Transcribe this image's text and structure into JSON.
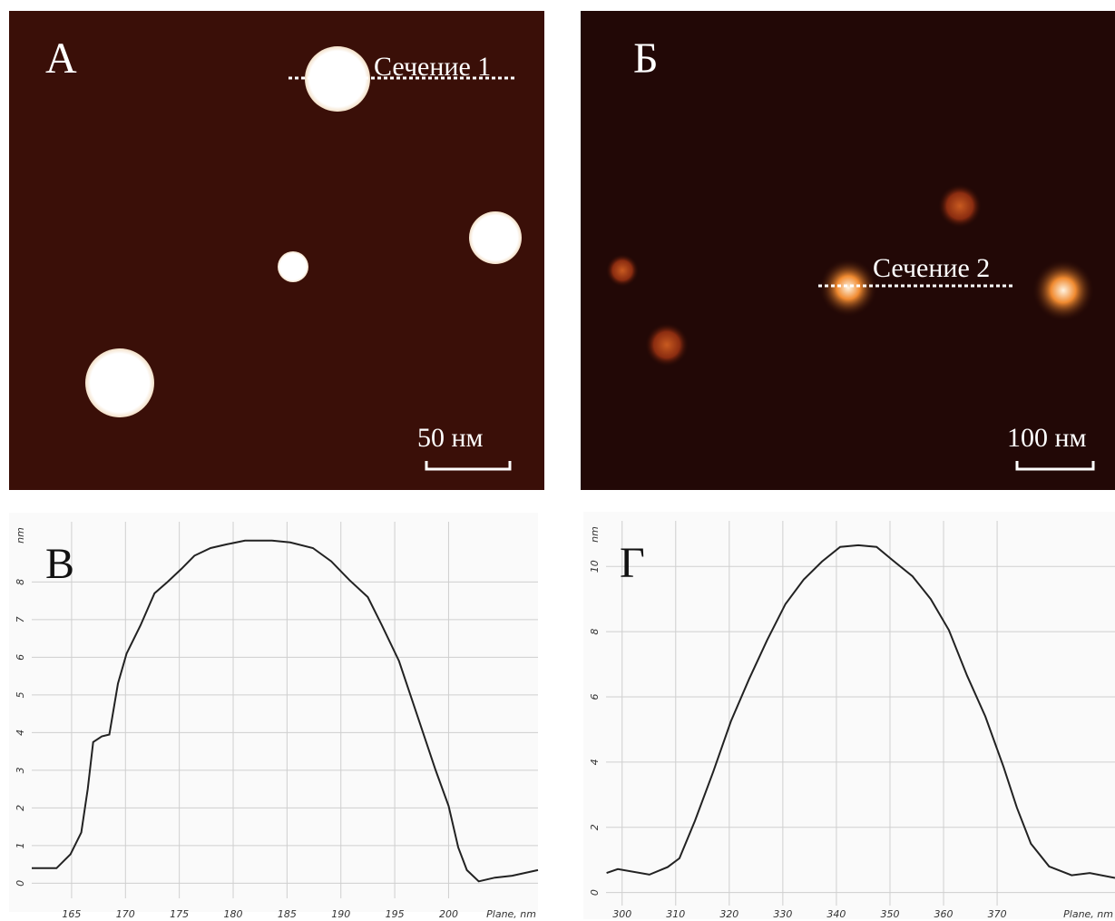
{
  "images": [
    {
      "panel_label": "А",
      "section_label": "Сечение 1",
      "scale_label": "50 нм"
    },
    {
      "panel_label": "Б",
      "section_label": "Сечение 2",
      "scale_label": "100 нм"
    }
  ],
  "chart_data": [
    {
      "type": "line",
      "panel_label": "В",
      "ylabel": "nm",
      "xlabel": "Plane, nm",
      "color": "#222222",
      "grid": true,
      "x": [
        161.3,
        163.6,
        164.9,
        165.9,
        166.5,
        167.0,
        167.8,
        168.5,
        169.3,
        170.1,
        171.4,
        172.7,
        173.9,
        175.2,
        176.4,
        177.9,
        179.4,
        181.1,
        183.6,
        185.3,
        187.4,
        189.1,
        190.8,
        192.5,
        193.8,
        195.4,
        197.1,
        198.8,
        200.0,
        200.9,
        201.7,
        202.8,
        204.3,
        205.9,
        208.3
      ],
      "values": [
        0.4,
        0.4,
        0.77,
        1.35,
        2.5,
        3.75,
        3.9,
        3.95,
        5.3,
        6.1,
        6.85,
        7.7,
        8.0,
        8.35,
        8.7,
        8.9,
        9.0,
        9.1,
        9.1,
        9.05,
        8.9,
        8.55,
        8.05,
        7.6,
        6.85,
        5.9,
        4.45,
        3.0,
        2.05,
        0.95,
        0.35,
        0.05,
        0.15,
        0.2,
        0.35
      ],
      "xlim": [
        161.3,
        208.3
      ],
      "xticks": [
        165,
        170,
        175,
        180,
        185,
        190,
        195,
        200
      ],
      "ylim": [
        -0.4,
        9.6
      ],
      "yticks": [
        0,
        1,
        2,
        3,
        4,
        5,
        6,
        7,
        8
      ]
    },
    {
      "type": "line",
      "panel_label": "Г",
      "ylabel": "nm",
      "xlabel": "Plane, nm",
      "color": "#222222",
      "grid": true,
      "x": [
        297.1,
        299.2,
        305.1,
        308.5,
        310.7,
        313.6,
        317.0,
        320.3,
        323.7,
        327.1,
        330.5,
        333.9,
        337.3,
        340.7,
        344.1,
        347.5,
        350.8,
        354.2,
        357.6,
        361.0,
        364.4,
        367.8,
        371.2,
        373.7,
        376.3,
        379.7,
        383.9,
        387.3,
        392.0
      ],
      "values": [
        0.6,
        0.72,
        0.55,
        0.78,
        1.05,
        2.2,
        3.7,
        5.25,
        6.55,
        7.75,
        8.85,
        9.6,
        10.15,
        10.6,
        10.65,
        10.6,
        10.15,
        9.7,
        9.0,
        8.05,
        6.65,
        5.4,
        3.85,
        2.6,
        1.5,
        0.8,
        0.53,
        0.6,
        0.45
      ],
      "xlim": [
        297,
        392
      ],
      "xticks": [
        300,
        310,
        320,
        330,
        340,
        350,
        360,
        370
      ],
      "ylim": [
        -0.4,
        11.4
      ],
      "yticks": [
        0,
        2,
        4,
        6,
        8,
        10
      ]
    }
  ]
}
